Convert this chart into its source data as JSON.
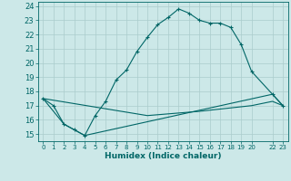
{
  "xlabel": "Humidex (Indice chaleur)",
  "bg_color": "#cce8e8",
  "grid_color": "#aacccc",
  "line_color": "#006666",
  "line1_x": [
    0,
    1,
    2,
    3,
    4,
    5,
    6,
    7,
    8,
    9,
    10,
    11,
    12,
    13,
    14,
    15,
    16,
    17,
    18,
    19,
    20,
    22,
    23
  ],
  "line1_y": [
    17.5,
    17.0,
    15.7,
    15.3,
    14.9,
    16.3,
    17.3,
    18.8,
    19.5,
    20.8,
    21.8,
    22.7,
    23.2,
    23.8,
    23.5,
    23.0,
    22.8,
    22.8,
    22.5,
    21.3,
    19.4,
    17.8,
    17.0
  ],
  "line2_x": [
    0,
    2,
    3,
    4,
    22,
    23
  ],
  "line2_y": [
    17.5,
    15.7,
    15.3,
    14.9,
    17.8,
    17.0
  ],
  "line3_x": [
    0,
    10,
    15,
    20,
    22,
    23
  ],
  "line3_y": [
    17.5,
    16.3,
    16.6,
    17.0,
    17.3,
    17.0
  ],
  "xlim": [
    -0.5,
    23.5
  ],
  "ylim": [
    14.5,
    24.3
  ],
  "yticks": [
    15,
    16,
    17,
    18,
    19,
    20,
    21,
    22,
    23,
    24
  ],
  "xticks": [
    0,
    1,
    2,
    3,
    4,
    5,
    6,
    7,
    8,
    9,
    10,
    11,
    12,
    13,
    14,
    15,
    16,
    17,
    18,
    19,
    20,
    22,
    23
  ],
  "xtick_labels": [
    "0",
    "1",
    "2",
    "3",
    "4",
    "5",
    "6",
    "7",
    "8",
    "9",
    "10",
    "11",
    "12",
    "13",
    "14",
    "15",
    "16",
    "17",
    "18",
    "19",
    "20",
    "22",
    "23"
  ]
}
